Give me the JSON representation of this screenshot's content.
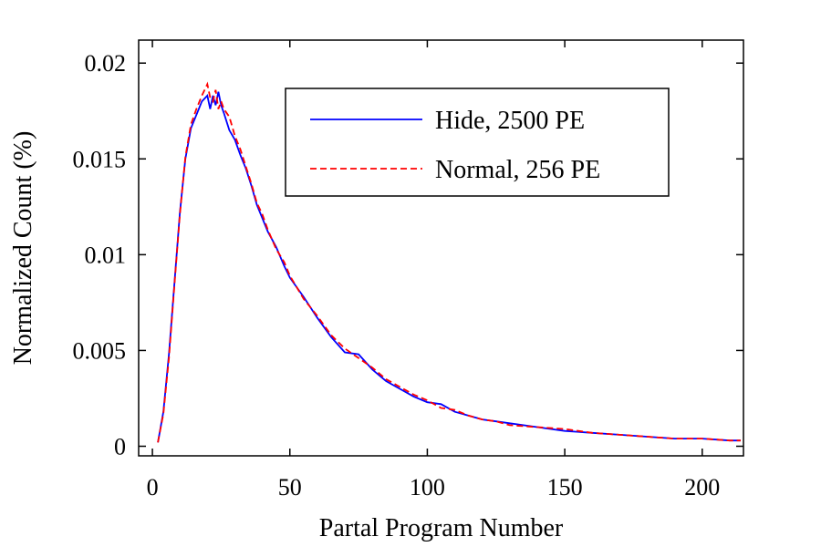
{
  "chart_data": {
    "type": "line",
    "title": "",
    "xlabel": "Partal Program Number",
    "ylabel": "Normalized Count (%)",
    "xlim": [
      -5,
      215
    ],
    "ylim": [
      -0.0005,
      0.0212
    ],
    "xticks": [
      0,
      50,
      100,
      150,
      200
    ],
    "xtick_labels": [
      "0",
      "50",
      "100",
      "150",
      "200"
    ],
    "yticks": [
      0,
      0.005,
      0.01,
      0.015,
      0.02
    ],
    "ytick_labels": [
      "0",
      "0.005",
      "0.01",
      "0.015",
      "0.02"
    ],
    "grid": false,
    "legend_position": "top-right",
    "series": [
      {
        "name": "Hide, 2500 PE",
        "color": "#0000ff",
        "dash": "solid",
        "x": [
          2,
          4,
          6,
          8,
          10,
          12,
          14,
          16,
          18,
          20,
          21,
          22,
          23,
          24,
          25,
          26,
          28,
          30,
          32,
          34,
          36,
          38,
          40,
          42,
          45,
          48,
          50,
          55,
          60,
          65,
          70,
          75,
          80,
          85,
          90,
          95,
          100,
          105,
          110,
          115,
          120,
          125,
          130,
          140,
          150,
          160,
          170,
          180,
          190,
          200,
          210,
          214
        ],
        "y": [
          0.0002,
          0.0018,
          0.0048,
          0.0085,
          0.0122,
          0.015,
          0.0166,
          0.0173,
          0.018,
          0.0183,
          0.0176,
          0.0183,
          0.0178,
          0.0185,
          0.0178,
          0.0174,
          0.0165,
          0.016,
          0.0152,
          0.0145,
          0.0136,
          0.0126,
          0.0119,
          0.0112,
          0.0104,
          0.0094,
          0.0088,
          0.0078,
          0.0067,
          0.0057,
          0.0049,
          0.0048,
          0.004,
          0.0034,
          0.003,
          0.0026,
          0.0023,
          0.0022,
          0.0018,
          0.0016,
          0.0014,
          0.0013,
          0.0012,
          0.001,
          0.0008,
          0.0007,
          0.0006,
          0.0005,
          0.0004,
          0.0004,
          0.0003,
          0.0003
        ]
      },
      {
        "name": "Normal, 256 PE",
        "color": "#ff0000",
        "dash": "dashed",
        "x": [
          2,
          4,
          6,
          8,
          10,
          12,
          14,
          16,
          18,
          20,
          21,
          22,
          23,
          24,
          25,
          26,
          28,
          30,
          32,
          34,
          36,
          38,
          40,
          42,
          45,
          48,
          50,
          55,
          60,
          65,
          70,
          75,
          80,
          85,
          90,
          95,
          100,
          105,
          110,
          115,
          120,
          125,
          130,
          140,
          150,
          160,
          170,
          180,
          190,
          200,
          210,
          214
        ],
        "y": [
          0.0002,
          0.0017,
          0.0046,
          0.0084,
          0.0121,
          0.0151,
          0.0168,
          0.0176,
          0.0183,
          0.0189,
          0.0182,
          0.018,
          0.0186,
          0.0176,
          0.018,
          0.0176,
          0.0172,
          0.0162,
          0.0155,
          0.0146,
          0.0137,
          0.0127,
          0.0121,
          0.0113,
          0.0103,
          0.0096,
          0.0089,
          0.0077,
          0.0068,
          0.0058,
          0.0051,
          0.0046,
          0.0041,
          0.0035,
          0.0031,
          0.0027,
          0.0024,
          0.002,
          0.0019,
          0.0016,
          0.0014,
          0.0013,
          0.0011,
          0.001,
          0.0009,
          0.0007,
          0.0006,
          0.0005,
          0.0004,
          0.0004,
          0.0003,
          0.0003
        ]
      }
    ]
  }
}
